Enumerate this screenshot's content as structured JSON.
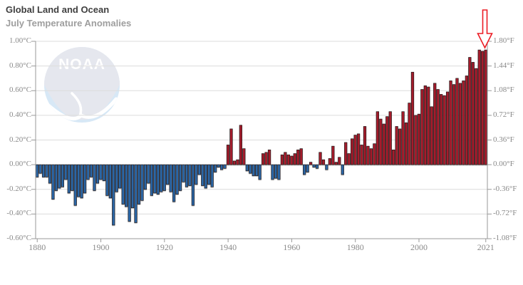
{
  "header": {
    "title": "Global Land and Ocean",
    "subtitle": "July Temperature Anomalies"
  },
  "logo": {
    "text": "NOAA"
  },
  "colors": {
    "bar_positive": "#a51c2c",
    "bar_negative": "#2b66a5",
    "bar_outline": "#231a1a",
    "axis": "#999999",
    "grid": "#dcdcdc",
    "tick_text": "#8a8a8a",
    "title": "#3f3f3f",
    "subtitle": "#9e9e9e",
    "arrow": "#ec1c24",
    "logo_top": "#e5e7ee",
    "logo_bottom": "#d7e8f6"
  },
  "chart_data": {
    "type": "bar",
    "title": "Global Land and Ocean",
    "subtitle": "July Temperature Anomalies",
    "start_year": 1880,
    "end_year": 2021,
    "ylim": [
      -0.6,
      1.0
    ],
    "unit_left": "°C",
    "unit_right": "°F",
    "legend": "none",
    "grid": true,
    "annotation": {
      "type": "down-arrow",
      "target_year": 2021
    },
    "yticks": [
      {
        "value": 1.0,
        "label_c": "1.00°C",
        "label_f": "1.80°F"
      },
      {
        "value": 0.8,
        "label_c": "0.80°C",
        "label_f": "1.44°F"
      },
      {
        "value": 0.6,
        "label_c": "0.60°C",
        "label_f": "1.08°F"
      },
      {
        "value": 0.4,
        "label_c": "0.40°C",
        "label_f": "0.72°F"
      },
      {
        "value": 0.2,
        "label_c": "0.20°C",
        "label_f": "0.36°F"
      },
      {
        "value": 0.0,
        "label_c": "0.00°C",
        "label_f": "0.00°F"
      },
      {
        "value": -0.2,
        "label_c": "-0.20°C",
        "label_f": "-0.36°F"
      },
      {
        "value": -0.4,
        "label_c": "-0.40°C",
        "label_f": "-0.72°F"
      },
      {
        "value": -0.6,
        "label_c": "-0.60°C",
        "label_f": "-1.08°F"
      }
    ],
    "xticks": [
      {
        "year": 1880,
        "label": "1880"
      },
      {
        "year": 1900,
        "label": "1900"
      },
      {
        "year": 1920,
        "label": "1920"
      },
      {
        "year": 1940,
        "label": "1940"
      },
      {
        "year": 1960,
        "label": "1960"
      },
      {
        "year": 1980,
        "label": "1980"
      },
      {
        "year": 2000,
        "label": "2000"
      },
      {
        "year": 2021,
        "label": "2021"
      }
    ],
    "values": [
      -0.1,
      -0.07,
      -0.1,
      -0.1,
      -0.15,
      -0.28,
      -0.21,
      -0.19,
      -0.18,
      -0.12,
      -0.23,
      -0.21,
      -0.33,
      -0.26,
      -0.27,
      -0.23,
      -0.12,
      -0.1,
      -0.21,
      -0.15,
      -0.12,
      -0.13,
      -0.25,
      -0.27,
      -0.49,
      -0.22,
      -0.19,
      -0.32,
      -0.34,
      -0.46,
      -0.35,
      -0.47,
      -0.32,
      -0.29,
      -0.2,
      -0.15,
      -0.25,
      -0.23,
      -0.24,
      -0.22,
      -0.21,
      -0.16,
      -0.22,
      -0.3,
      -0.24,
      -0.21,
      -0.14,
      -0.18,
      -0.17,
      -0.33,
      -0.16,
      -0.08,
      -0.17,
      -0.19,
      -0.16,
      -0.18,
      -0.06,
      -0.02,
      -0.04,
      -0.03,
      0.16,
      0.29,
      0.03,
      0.04,
      0.32,
      0.13,
      -0.05,
      -0.07,
      -0.09,
      -0.09,
      -0.12,
      0.09,
      0.1,
      0.12,
      -0.12,
      -0.11,
      -0.12,
      0.08,
      0.1,
      0.08,
      0.07,
      0.09,
      0.12,
      0.13,
      -0.08,
      -0.06,
      0.02,
      -0.02,
      -0.03,
      0.1,
      0.04,
      -0.04,
      0.05,
      0.15,
      0.02,
      0.06,
      -0.08,
      0.18,
      0.09,
      0.21,
      0.24,
      0.25,
      0.16,
      0.31,
      0.15,
      0.13,
      0.17,
      0.43,
      0.37,
      0.33,
      0.39,
      0.43,
      0.12,
      0.31,
      0.29,
      0.43,
      0.34,
      0.5,
      0.75,
      0.4,
      0.41,
      0.61,
      0.64,
      0.63,
      0.47,
      0.66,
      0.61,
      0.57,
      0.56,
      0.59,
      0.68,
      0.65,
      0.7,
      0.66,
      0.68,
      0.72,
      0.87,
      0.83,
      0.78,
      0.93,
      0.92,
      0.93
    ]
  }
}
